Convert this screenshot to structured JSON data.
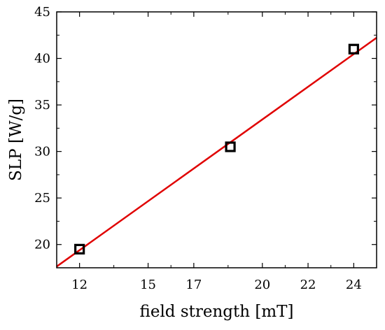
{
  "chart_data": {
    "type": "scatter",
    "title": "",
    "xlabel": "field strength [mT]",
    "ylabel": "SLP [W/g]",
    "xlim": [
      11,
      25
    ],
    "ylim": [
      17.5,
      45
    ],
    "x_major_ticks": [
      12,
      15,
      17,
      20,
      22,
      24
    ],
    "x_tick_labels": [
      "12",
      "15",
      "17",
      "20",
      "22",
      "24"
    ],
    "y_major_ticks": [
      20,
      25,
      30,
      35,
      40,
      45
    ],
    "y_tick_labels": [
      "20",
      "25",
      "30",
      "35",
      "40",
      "45"
    ],
    "grid": false,
    "series": [
      {
        "marker": "open-square",
        "color": "#000000",
        "points": [
          {
            "x": 12.0,
            "y": 19.5
          },
          {
            "x": 18.6,
            "y": 30.5
          },
          {
            "x": 24.0,
            "y": 41.0
          }
        ]
      }
    ],
    "fit_line": {
      "type": "linear",
      "color": "#e00000",
      "slope": 1.756,
      "intercept": -1.68
    }
  }
}
